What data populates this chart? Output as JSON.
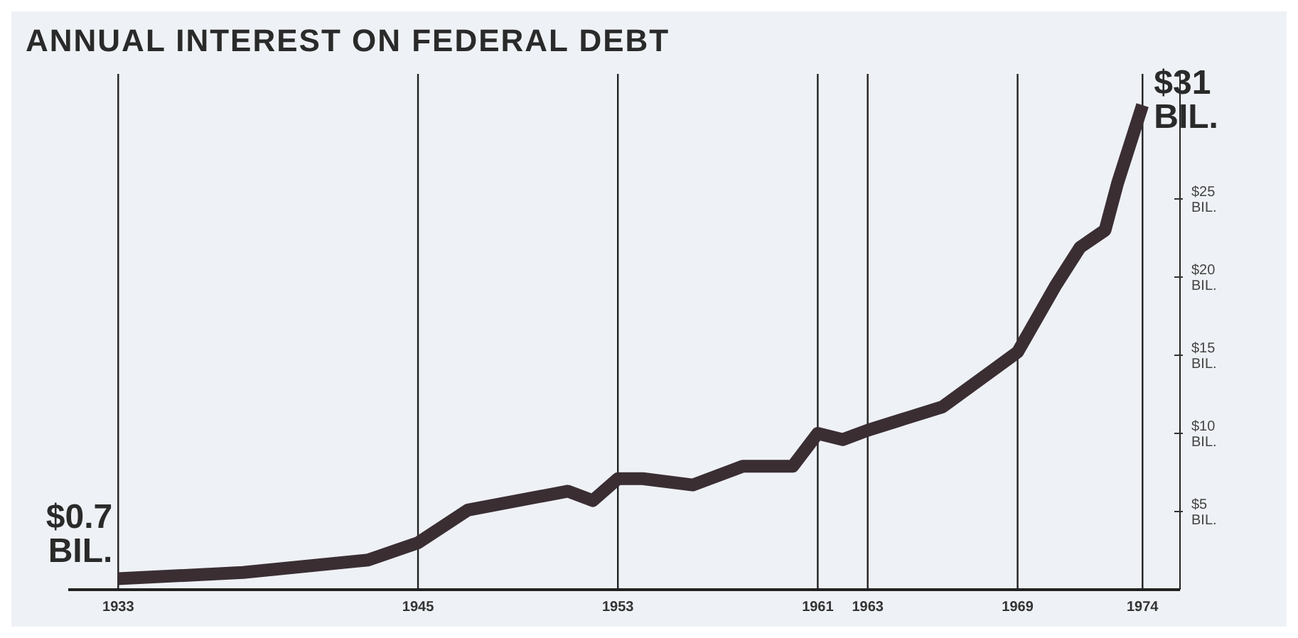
{
  "chart_data": {
    "type": "line",
    "title": "ANNUAL INTEREST ON FEDERAL DEBT",
    "x": [
      1933,
      1938,
      1943,
      1945,
      1947,
      1951,
      1952,
      1953,
      1954,
      1956,
      1958,
      1960,
      1961,
      1962,
      1963,
      1966,
      1969,
      1970.5,
      1971.5,
      1972.5,
      1973,
      1974
    ],
    "series": [
      {
        "color": "#3a2e33",
        "values": [
          0.7,
          1.1,
          1.9,
          3.0,
          5.1,
          6.3,
          5.7,
          7.1,
          7.1,
          6.7,
          7.9,
          7.9,
          10,
          9.6,
          10.2,
          11.7,
          15.2,
          19.4,
          21.9,
          23,
          26,
          31
        ]
      }
    ],
    "xlim": [
      1931,
      1975.5
    ],
    "xticks": [
      1933,
      1945,
      1953,
      1961,
      1963,
      1969,
      1974
    ],
    "ylim": [
      0,
      33
    ],
    "yticks": [
      {
        "value": 5,
        "label": "$5 BIL."
      },
      {
        "value": 10,
        "label": "$10 BIL."
      },
      {
        "value": 15,
        "label": "$15 BIL."
      },
      {
        "value": 20,
        "label": "$20 BIL."
      },
      {
        "value": 25,
        "label": "$25 BIL."
      }
    ],
    "grid": "x",
    "marker": "none",
    "line_style": "solid",
    "annotations": [
      {
        "text": "$0.7 BIL.",
        "x": 1933,
        "y": 0.7
      },
      {
        "text": "$31 BIL.",
        "x": 1974,
        "y": 31
      }
    ]
  }
}
